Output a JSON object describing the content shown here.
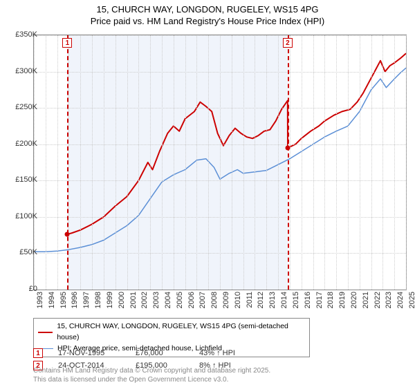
{
  "title_line1": "15, CHURCH WAY, LONGDON, RUGELEY, WS15 4PG",
  "title_line2": "Price paid vs. HM Land Registry's House Price Index (HPI)",
  "chart": {
    "type": "line",
    "background_color": "#ffffff",
    "grid_color": "#cccccc",
    "border_color": "#888888",
    "shaded_color": "#eaf0fa",
    "ylim": [
      0,
      350000
    ],
    "ytick_step": 50000,
    "y_ticks": [
      "£0",
      "£50K",
      "£100K",
      "£150K",
      "£200K",
      "£250K",
      "£300K",
      "£350K"
    ],
    "xlim": [
      1993,
      2025
    ],
    "x_ticks": [
      1993,
      1994,
      1995,
      1996,
      1997,
      1998,
      1999,
      2000,
      2001,
      2002,
      2003,
      2004,
      2005,
      2006,
      2007,
      2008,
      2009,
      2010,
      2011,
      2012,
      2013,
      2014,
      2015,
      2016,
      2017,
      2018,
      2019,
      2020,
      2021,
      2022,
      2023,
      2024,
      2025
    ],
    "shaded_ranges": [
      [
        1995.88,
        2014.82
      ]
    ],
    "markers": [
      {
        "id": "1",
        "x": 1995.88,
        "y": 76000
      },
      {
        "id": "2",
        "x": 2014.82,
        "y": 195000
      }
    ],
    "series": [
      {
        "name": "price_paid",
        "label": "15, CHURCH WAY, LONGDON, RUGELEY, WS15 4PG (semi-detached house)",
        "color": "#cc0000",
        "line_width": 2,
        "data": [
          [
            1995.88,
            76000
          ],
          [
            1996.3,
            78000
          ],
          [
            1997,
            82000
          ],
          [
            1998,
            90000
          ],
          [
            1999,
            100000
          ],
          [
            2000,
            115000
          ],
          [
            2001,
            128000
          ],
          [
            2002,
            150000
          ],
          [
            2002.8,
            175000
          ],
          [
            2003.2,
            165000
          ],
          [
            2003.8,
            190000
          ],
          [
            2004.5,
            215000
          ],
          [
            2005,
            225000
          ],
          [
            2005.5,
            218000
          ],
          [
            2006,
            235000
          ],
          [
            2006.8,
            245000
          ],
          [
            2007.3,
            258000
          ],
          [
            2007.8,
            252000
          ],
          [
            2008.3,
            245000
          ],
          [
            2008.8,
            215000
          ],
          [
            2009.3,
            198000
          ],
          [
            2009.8,
            212000
          ],
          [
            2010.3,
            222000
          ],
          [
            2010.8,
            215000
          ],
          [
            2011.3,
            210000
          ],
          [
            2011.8,
            208000
          ],
          [
            2012.3,
            212000
          ],
          [
            2012.8,
            218000
          ],
          [
            2013.3,
            220000
          ],
          [
            2013.8,
            232000
          ],
          [
            2014.3,
            248000
          ],
          [
            2014.82,
            260000
          ],
          [
            2014.83,
            195000
          ],
          [
            2015.5,
            200000
          ],
          [
            2016,
            208000
          ],
          [
            2016.8,
            218000
          ],
          [
            2017.5,
            225000
          ],
          [
            2018,
            232000
          ],
          [
            2018.8,
            240000
          ],
          [
            2019.5,
            245000
          ],
          [
            2020.2,
            248000
          ],
          [
            2020.8,
            258000
          ],
          [
            2021.3,
            270000
          ],
          [
            2021.8,
            285000
          ],
          [
            2022.3,
            300000
          ],
          [
            2022.8,
            315000
          ],
          [
            2023.2,
            300000
          ],
          [
            2023.6,
            308000
          ],
          [
            2024,
            312000
          ],
          [
            2024.5,
            318000
          ],
          [
            2025,
            325000
          ]
        ]
      },
      {
        "name": "hpi",
        "label": "HPI: Average price, semi-detached house, Lichfield",
        "color": "#5b8fd6",
        "line_width": 1.5,
        "data": [
          [
            1993,
            52000
          ],
          [
            1994,
            52000
          ],
          [
            1995,
            53000
          ],
          [
            1996,
            55000
          ],
          [
            1997,
            58000
          ],
          [
            1998,
            62000
          ],
          [
            1999,
            68000
          ],
          [
            2000,
            78000
          ],
          [
            2001,
            88000
          ],
          [
            2002,
            102000
          ],
          [
            2003,
            125000
          ],
          [
            2004,
            148000
          ],
          [
            2005,
            158000
          ],
          [
            2006,
            165000
          ],
          [
            2007,
            178000
          ],
          [
            2007.8,
            180000
          ],
          [
            2008.5,
            168000
          ],
          [
            2009,
            152000
          ],
          [
            2009.8,
            160000
          ],
          [
            2010.5,
            165000
          ],
          [
            2011,
            160000
          ],
          [
            2012,
            162000
          ],
          [
            2013,
            164000
          ],
          [
            2014,
            172000
          ],
          [
            2015,
            180000
          ],
          [
            2016,
            190000
          ],
          [
            2017,
            200000
          ],
          [
            2018,
            210000
          ],
          [
            2019,
            218000
          ],
          [
            2020,
            225000
          ],
          [
            2021,
            245000
          ],
          [
            2022,
            275000
          ],
          [
            2022.8,
            290000
          ],
          [
            2023.3,
            278000
          ],
          [
            2024,
            290000
          ],
          [
            2024.5,
            298000
          ],
          [
            2025,
            305000
          ]
        ]
      }
    ]
  },
  "legend": {
    "items": [
      {
        "color": "#cc0000",
        "label": "15, CHURCH WAY, LONGDON, RUGELEY, WS15 4PG (semi-detached house)"
      },
      {
        "color": "#5b8fd6",
        "label": "HPI: Average price, semi-detached house, Lichfield"
      }
    ]
  },
  "sales": [
    {
      "id": "1",
      "date": "17-NOV-1995",
      "price": "£76,000",
      "delta": "43% ↑ HPI"
    },
    {
      "id": "2",
      "date": "24-OCT-2014",
      "price": "£195,000",
      "delta": "8% ↑ HPI"
    }
  ],
  "footer_line1": "Contains HM Land Registry data © Crown copyright and database right 2025.",
  "footer_line2": "This data is licensed under the Open Government Licence v3.0.",
  "marker_style": {
    "border_color": "#cc0000",
    "text_color": "#cc0000",
    "background": "#ffffff"
  }
}
